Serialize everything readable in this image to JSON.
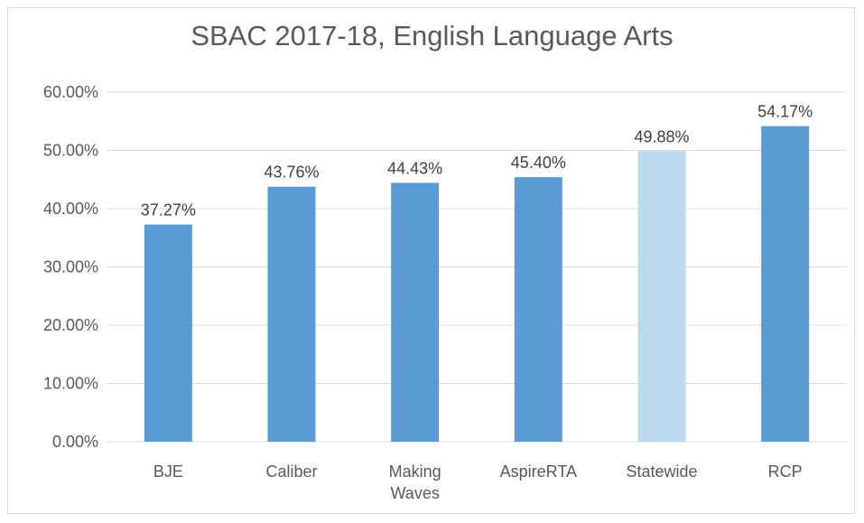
{
  "chart_data": {
    "type": "bar",
    "title": "SBAC 2017-18, English Language Arts",
    "categories": [
      "BJE",
      "Caliber",
      "Making Waves",
      "AspireRTA",
      "Statewide",
      "RCP"
    ],
    "category_lines": [
      [
        "BJE"
      ],
      [
        "Caliber"
      ],
      [
        "Making",
        "Waves"
      ],
      [
        "AspireRTA"
      ],
      [
        "Statewide"
      ],
      [
        "RCP"
      ]
    ],
    "values": [
      37.27,
      43.76,
      44.43,
      45.4,
      49.88,
      54.17
    ],
    "data_labels": [
      "37.27%",
      "43.76%",
      "44.43%",
      "45.40%",
      "49.88%",
      "54.17%"
    ],
    "y_ticks": [
      0,
      10,
      20,
      30,
      40,
      50,
      60
    ],
    "y_tick_labels": [
      "0.00%",
      "10.00%",
      "20.00%",
      "30.00%",
      "40.00%",
      "50.00%",
      "60.00%"
    ],
    "ylim": [
      0,
      60
    ],
    "xlabel": "",
    "ylabel": "",
    "grid": true,
    "legend": "none",
    "colors": {
      "bar": "#5b9bd5",
      "highlight_bar": "#bdd7ee",
      "gridline": "#d9d9d9",
      "text": "#595959"
    },
    "highlight_index": 4
  }
}
